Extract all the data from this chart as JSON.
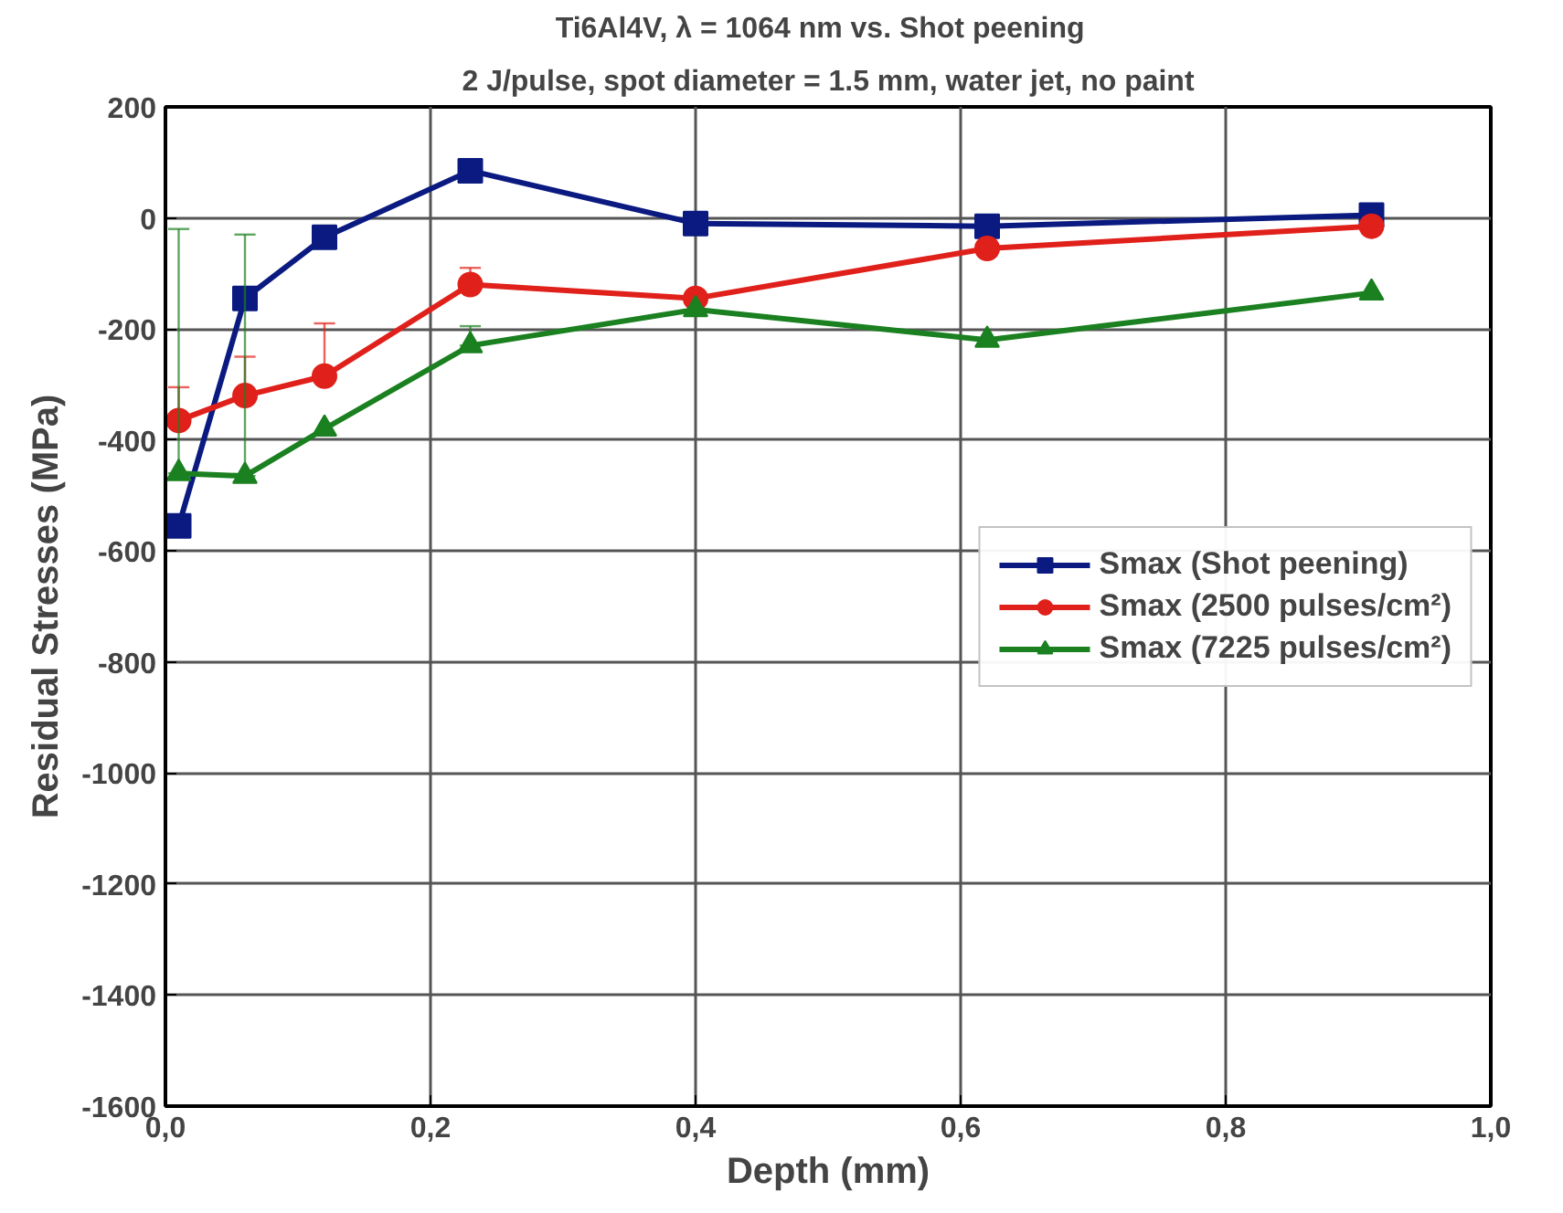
{
  "chart_data": {
    "type": "line",
    "title": "Ti6Al4V, λ = 1064 nm  vs.  Shot peening",
    "subtitle": "2 J/pulse, spot diameter = 1.5 mm, water jet, no paint",
    "xlabel": "Depth (mm)",
    "ylabel": "Residual Stresses (MPa)",
    "x": [
      0.01,
      0.06,
      0.12,
      0.23,
      0.4,
      0.62,
      0.91
    ],
    "series": [
      {
        "name": "Smax (Shot peening)",
        "color": "#0a1a80",
        "marker": "square",
        "values": [
          -555,
          -145,
          -35,
          85,
          -10,
          -15,
          5
        ]
      },
      {
        "name": "Smax (2500 pulses/cm²)",
        "color": "#e0201a",
        "marker": "circle",
        "values": [
          -365,
          -320,
          -285,
          -120,
          -145,
          -55,
          -15
        ],
        "errors": [
          [
            -365,
            -305
          ],
          [
            -320,
            -250
          ],
          [
            -285,
            -190
          ],
          [
            -120,
            -90
          ],
          null,
          null,
          null
        ]
      },
      {
        "name": "Smax (7225 pulses/cm²)",
        "color": "#1a8020",
        "marker": "triangle",
        "values": [
          -460,
          -465,
          -380,
          -230,
          -165,
          -220,
          -135
        ],
        "errors": [
          [
            -460,
            -20
          ],
          [
            -465,
            -30
          ],
          null,
          [
            -230,
            -195
          ],
          null,
          null,
          null
        ]
      }
    ],
    "xlim": [
      0,
      1
    ],
    "xticks": [
      {
        "value": 0,
        "label": "0,0"
      },
      {
        "value": 0.2,
        "label": "0,2"
      },
      {
        "value": 0.4,
        "label": "0,4"
      },
      {
        "value": 0.6,
        "label": "0,6"
      },
      {
        "value": 0.8,
        "label": "0,8"
      },
      {
        "value": 1,
        "label": "1,0"
      }
    ],
    "ylim": [
      -1600,
      200
    ],
    "yticks": [
      -1600,
      -1400,
      -1200,
      -1000,
      -800,
      -600,
      -400,
      -200,
      0,
      200
    ],
    "grid": true,
    "legend": "right",
    "line_style": "solid"
  }
}
